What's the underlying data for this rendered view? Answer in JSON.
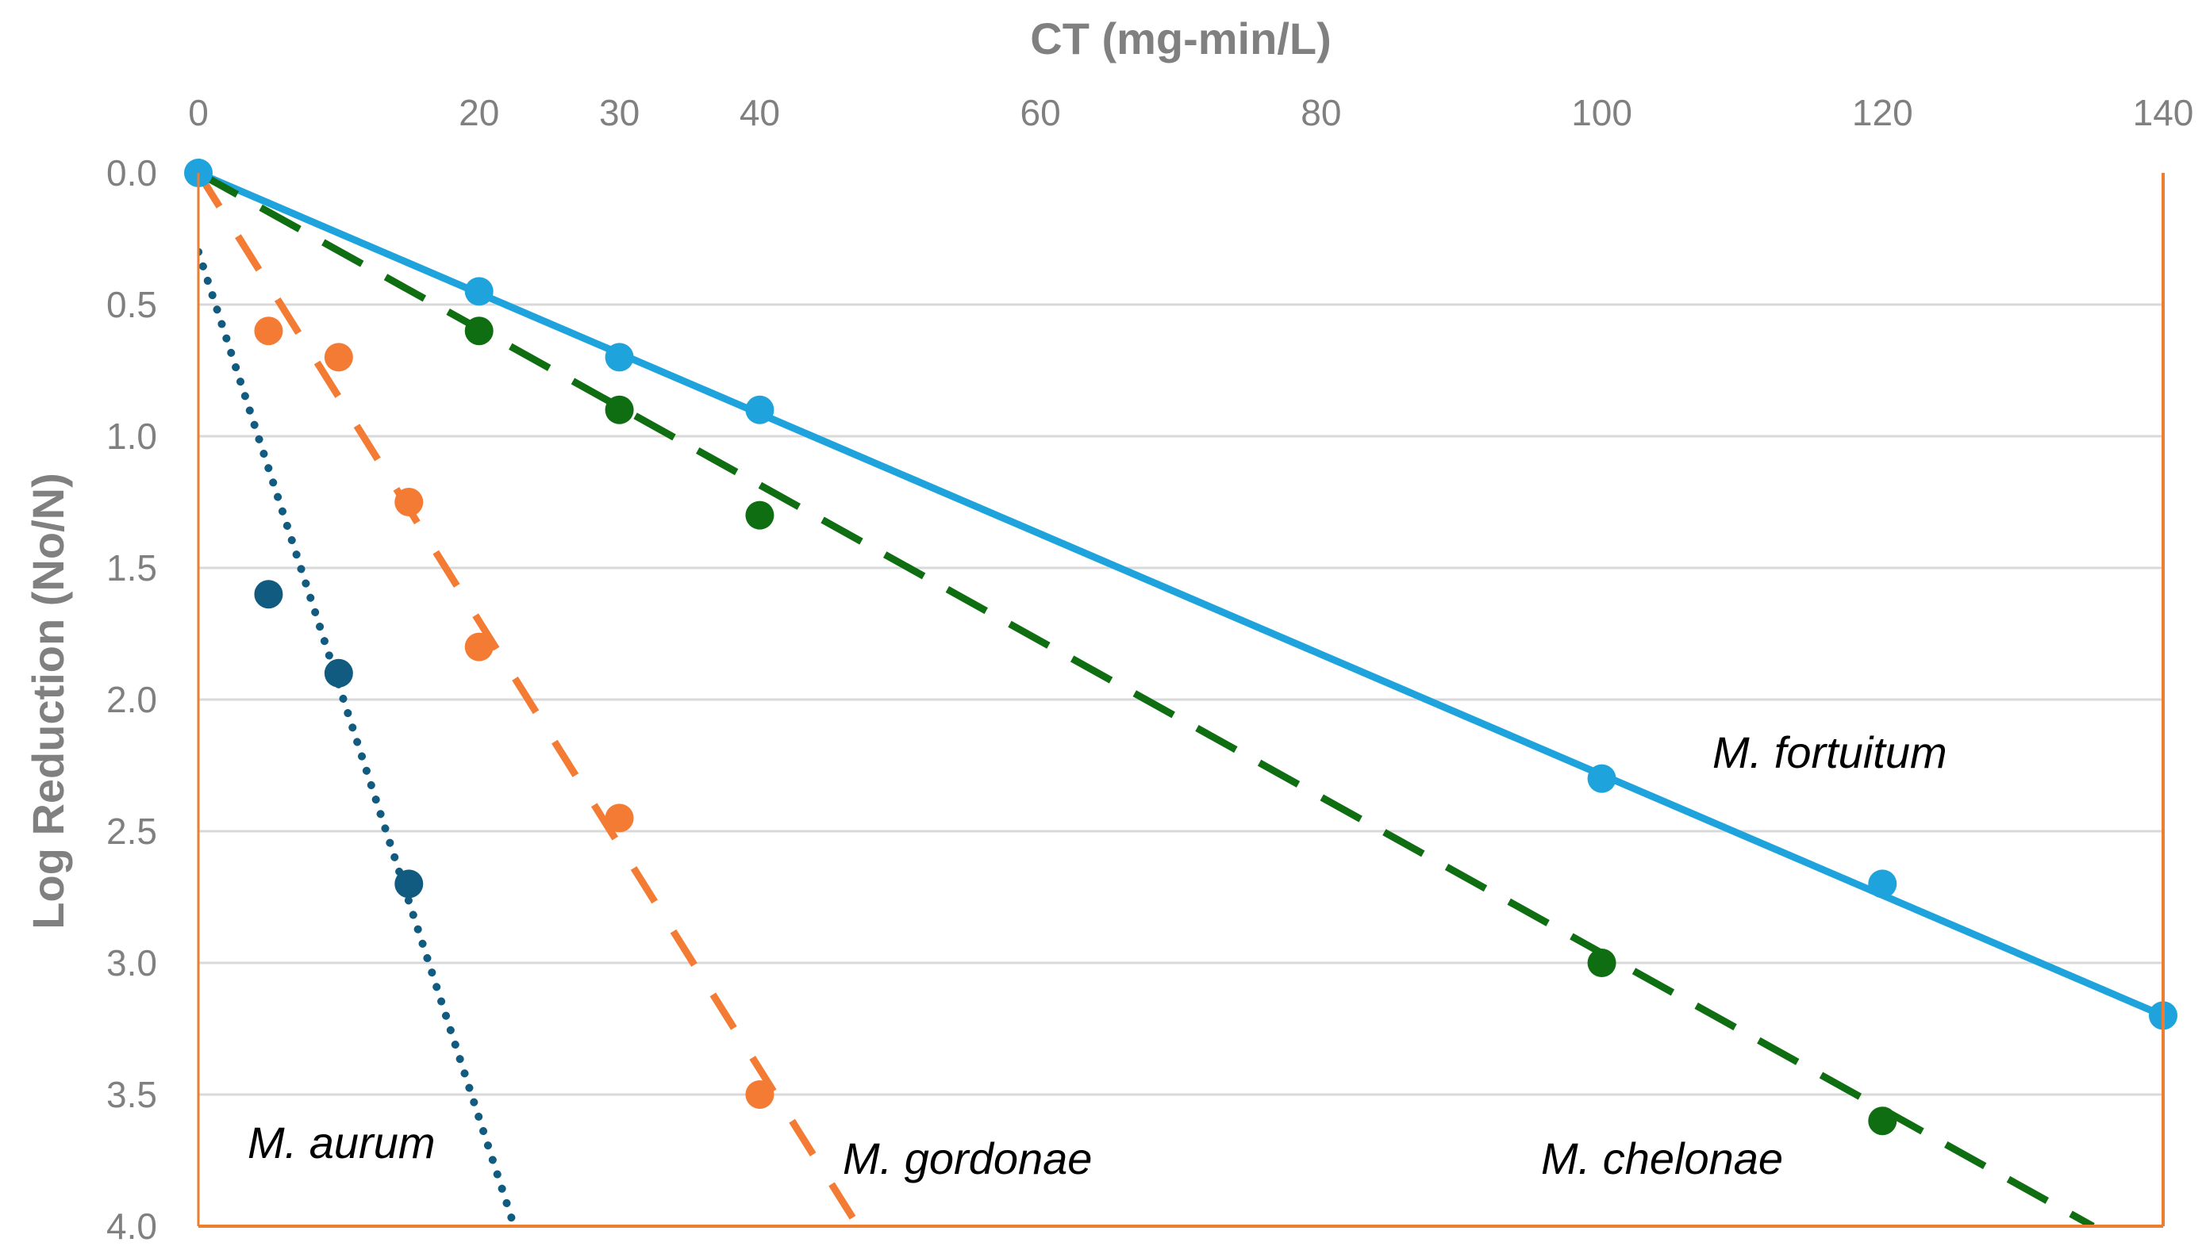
{
  "chart_data": {
    "type": "scatter",
    "title": "",
    "xlabel": "CT (mg-min/L)",
    "ylabel": "Log Reduction (No/N)",
    "xlim": [
      0,
      140
    ],
    "ylim": [
      0,
      4.0
    ],
    "y_axis_inverted": true,
    "x_axis_position": "top",
    "grid": "horizontal",
    "xticks": [
      "0",
      "20",
      "30",
      "40",
      "60",
      "80",
      "100",
      "120",
      "140"
    ],
    "xtick_values": [
      0,
      20,
      30,
      40,
      60,
      80,
      100,
      120,
      140
    ],
    "yticks": [
      "0.0",
      "0.5",
      "1.0",
      "1.5",
      "2.0",
      "2.5",
      "3.0",
      "3.5",
      "4.0"
    ],
    "ytick_values": [
      0,
      0.5,
      1.0,
      1.5,
      2.0,
      2.5,
      3.0,
      3.5,
      4.0
    ],
    "colors": {
      "grid": "#d9d9d9",
      "frame": "#ed7d31",
      "text": "#808080"
    },
    "series": [
      {
        "name": "M. fortuitum",
        "color": "#1ea3dc",
        "line_style": "solid",
        "x": [
          0,
          20,
          30,
          40,
          100,
          120,
          140
        ],
        "y": [
          0,
          0.45,
          0.7,
          0.9,
          2.3,
          2.7,
          3.2
        ],
        "fit": {
          "x": [
            0,
            140
          ],
          "y": [
            0,
            3.2
          ]
        },
        "label_position": "right"
      },
      {
        "name": "M. chelonae",
        "color": "#0f6e12",
        "line_style": "dashed",
        "x": [
          20,
          30,
          40,
          100,
          120
        ],
        "y": [
          0.6,
          0.9,
          1.3,
          3.0,
          3.6
        ],
        "fit": {
          "x": [
            0,
            135
          ],
          "y": [
            0,
            4.0
          ]
        },
        "label_position": "bottom-right"
      },
      {
        "name": "M. gordonae",
        "color": "#f47b34",
        "line_style": "dashed",
        "x": [
          5,
          10,
          15,
          20,
          30,
          40
        ],
        "y": [
          0.6,
          0.7,
          1.25,
          1.8,
          2.45,
          3.5
        ],
        "fit": {
          "x": [
            0,
            47
          ],
          "y": [
            0,
            4.0
          ]
        },
        "label_position": "bottom-center"
      },
      {
        "name": "M. aurum",
        "color": "#125b80",
        "line_style": "dotted",
        "x": [
          5,
          10,
          15
        ],
        "y": [
          1.6,
          1.9,
          2.7
        ],
        "fit": {
          "x": [
            0,
            22.5
          ],
          "y": [
            0.3,
            4.0
          ]
        },
        "label_position": "bottom-left"
      }
    ]
  }
}
